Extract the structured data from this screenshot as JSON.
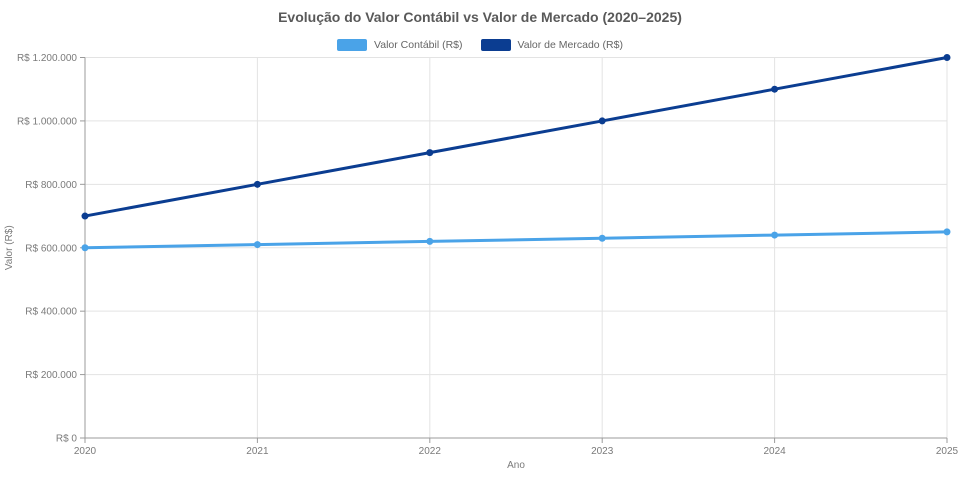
{
  "chart_title": "Evolução do Valor Contábil vs Valor de Mercado (2020–2025)",
  "chart_data": {
    "type": "line",
    "title": "Evolução do Valor Contábil vs Valor de Mercado (2020–2025)",
    "xlabel": "Ano",
    "ylabel": "Valor (R$)",
    "categories": [
      "2020",
      "2021",
      "2022",
      "2023",
      "2024",
      "2025"
    ],
    "series": [
      {
        "name": "Valor Contábil (R$)",
        "color": "#4AA3E8",
        "values": [
          600000,
          610000,
          620000,
          630000,
          640000,
          650000
        ]
      },
      {
        "name": "Valor de Mercado (R$)",
        "color": "#0B3D91",
        "values": [
          700000,
          800000,
          900000,
          1000000,
          1100000,
          1200000
        ]
      }
    ],
    "ylim": [
      0,
      1200000
    ],
    "y_ticks": [
      {
        "value": 0,
        "label": "R$ 0"
      },
      {
        "value": 200000,
        "label": "R$ 200.000"
      },
      {
        "value": 400000,
        "label": "R$ 400.000"
      },
      {
        "value": 600000,
        "label": "R$ 600.000"
      },
      {
        "value": 800000,
        "label": "R$ 800.000"
      },
      {
        "value": 1000000,
        "label": "R$ 1.000.000"
      },
      {
        "value": 1200000,
        "label": "R$ 1.200.000"
      }
    ],
    "grid": true,
    "legend_position": "top",
    "colors": {
      "grid_line": "#e3e3e3",
      "axis_line": "#9b9b9b",
      "tick_label": "#7a7a7a",
      "title": "#595959"
    }
  }
}
